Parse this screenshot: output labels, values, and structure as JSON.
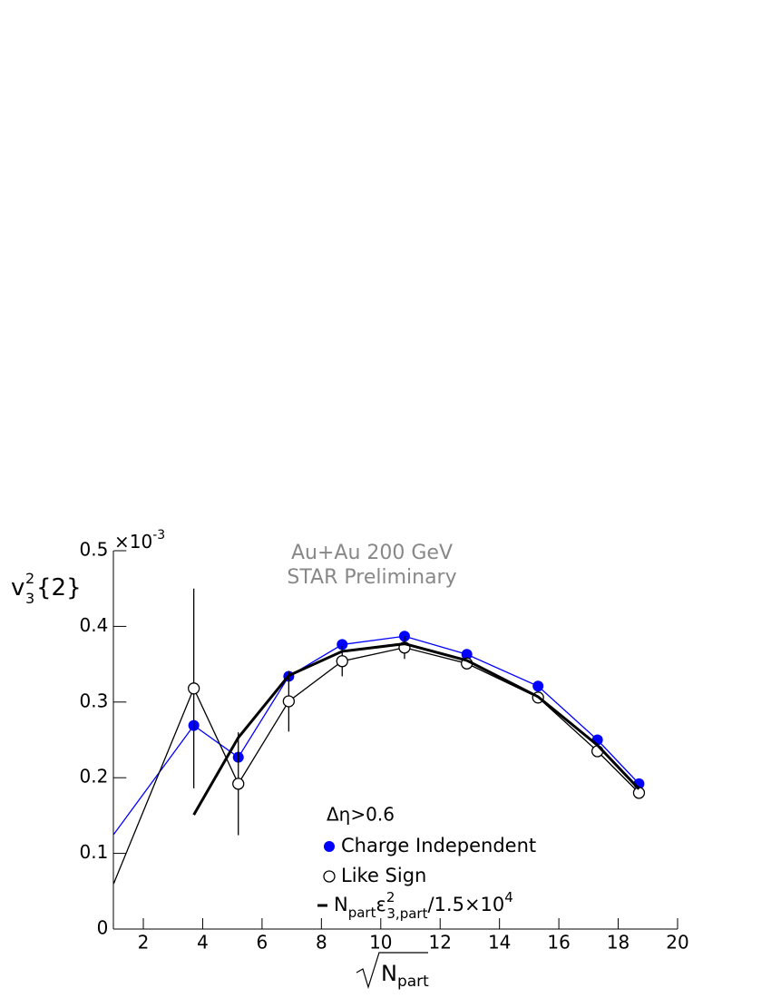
{
  "chart_data": {
    "type": "line",
    "y_label": {
      "base": "v",
      "sup": "2",
      "sub": "3",
      "rest": "{2}"
    },
    "y_multiplier": {
      "base": "×10",
      "exp": "-3"
    },
    "x_label": [
      "N",
      "part"
    ],
    "annotations": [
      "Au+Au 200 GeV",
      "STAR Preliminary"
    ],
    "legend_title": "Δη>0.6",
    "xlim": [
      1,
      20
    ],
    "xticks": [
      2,
      4,
      6,
      8,
      10,
      12,
      14,
      16,
      18,
      20
    ],
    "ylim": [
      0,
      0.5
    ],
    "yticks": [
      0,
      0.1,
      0.2,
      0.3,
      0.4,
      0.5
    ],
    "series": [
      {
        "name": "Charge Independent",
        "color": "#0000ff",
        "marker": "filled",
        "x": [
          1,
          3.7,
          5.2,
          6.9,
          8.7,
          10.8,
          12.9,
          15.3,
          17.3,
          18.7
        ],
        "values": [
          0.125,
          0.269,
          0.227,
          0.334,
          0.376,
          0.387,
          0.363,
          0.321,
          0.25,
          0.192
        ]
      },
      {
        "name": "Like Sign",
        "color": "#000000",
        "marker": "open",
        "x": [
          1,
          3.7,
          5.2,
          6.9,
          8.7,
          10.8,
          12.9,
          15.3,
          17.3,
          18.7
        ],
        "values": [
          0.06,
          0.318,
          0.192,
          0.301,
          0.354,
          0.372,
          0.351,
          0.306,
          0.235,
          0.18
        ],
        "errors": [
          0,
          0.132,
          0.068,
          0.04,
          0.02,
          0.015,
          0.008,
          0.005,
          0.005,
          0.005
        ]
      },
      {
        "name": [
          "N",
          "part",
          "ε",
          "2",
          "3,part",
          "/1.5×10",
          "4"
        ],
        "color": "#000000",
        "marker": "none",
        "x": [
          3.7,
          5.2,
          6.9,
          8.7,
          10.8,
          12.9,
          15.3,
          17.3,
          18.7
        ],
        "values": [
          0.151,
          0.253,
          0.335,
          0.367,
          0.377,
          0.355,
          0.307,
          0.243,
          0.185
        ]
      }
    ]
  }
}
